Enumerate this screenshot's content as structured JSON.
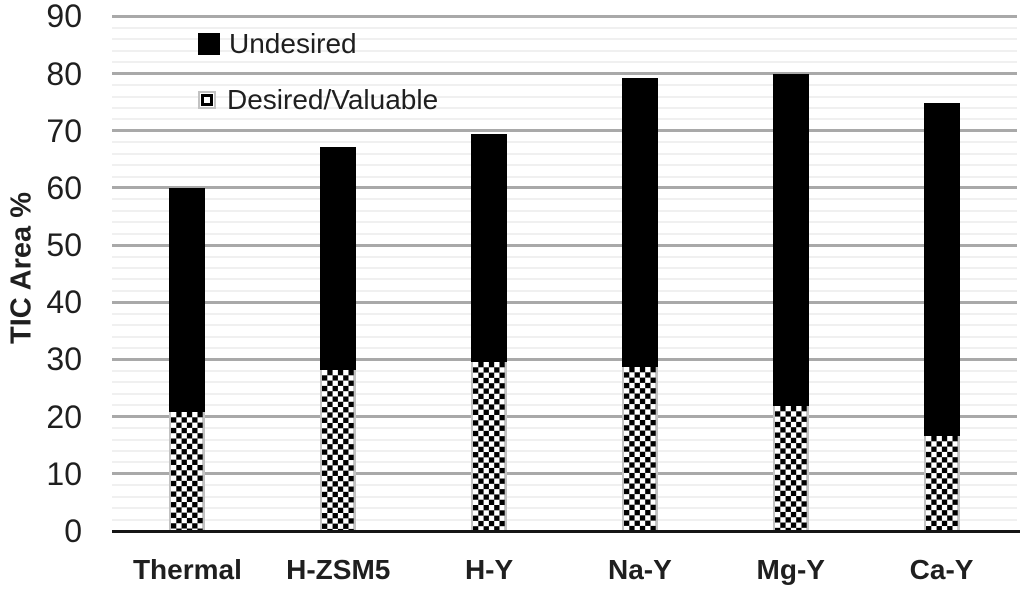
{
  "chart_data": {
    "type": "bar",
    "stacked": true,
    "ylabel": "TIC Area %",
    "xlabel": "",
    "ylim": [
      0,
      90
    ],
    "ytick_step": 10,
    "minor_gridline_step": 2,
    "grid": true,
    "legend_position": "inside-top-left",
    "categories": [
      "Thermal",
      "H-ZSM5",
      "H-Y",
      "Na-Y",
      "Mg-Y",
      "Ca-Y"
    ],
    "series": [
      {
        "name": "Desired/Valuable",
        "style": "checkerboard",
        "values": [
          20.9,
          28.1,
          29.5,
          28.6,
          21.9,
          16.6
        ]
      },
      {
        "name": "Undesired",
        "style": "solid",
        "values": [
          39.1,
          39.0,
          39.9,
          50.7,
          58.1,
          58.3
        ]
      }
    ],
    "stack_totals": [
      60.0,
      67.1,
      69.4,
      79.3,
      80.0,
      74.9
    ],
    "y_tick_labels": [
      "0",
      "10",
      "20",
      "30",
      "40",
      "50",
      "60",
      "70",
      "80",
      "90"
    ]
  },
  "legend": {
    "undesired_label": "Undesired",
    "desired_label": "Desired/Valuable"
  },
  "colors": {
    "bar_solid": "#000000",
    "checker_black": "#000000",
    "checker_white": "#ffffff",
    "checker_border": "#c2c2c2",
    "major_gridline": "#a9a9a9",
    "minor_gridline": "#f0f0f0",
    "axis_line": "#161616",
    "text": "#1f1f1f"
  }
}
